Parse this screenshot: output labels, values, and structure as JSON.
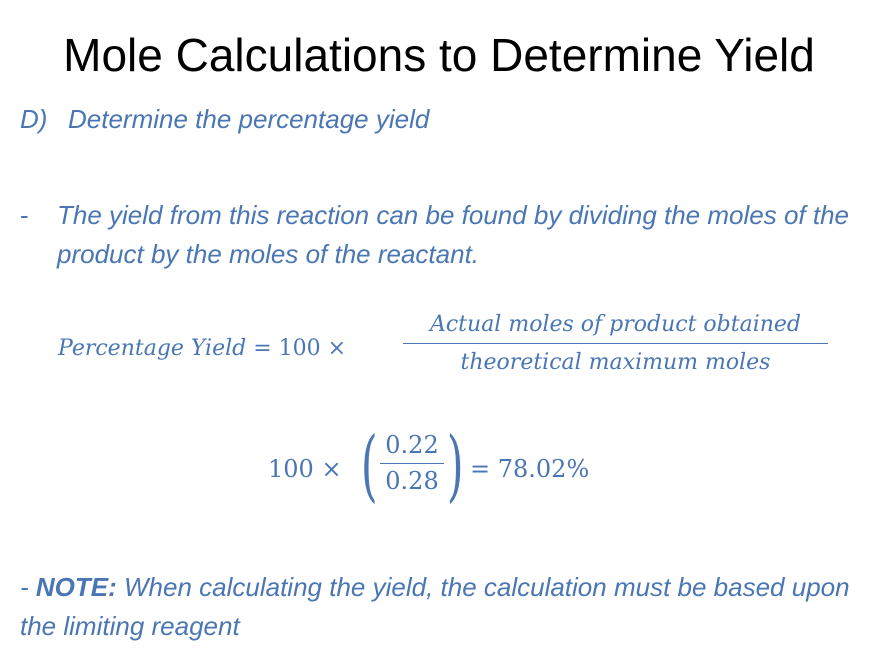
{
  "slide": {
    "title": "Mole Calculations to Determine Yield",
    "heading": {
      "label": "D)",
      "text": "Determine the percentage yield"
    },
    "bullet": {
      "marker": "-",
      "text": "The yield from this reaction can be found by dividing the moles of the product by the moles of the reactant."
    },
    "formula": {
      "lhs_name": "Percentage Yield",
      "lhs_rest": "= 100 ×",
      "numerator": "Actual moles of product obtained",
      "denominator": "theoretical maximum moles"
    },
    "calculation": {
      "multiplier": "100 ×",
      "numerator": "0.22",
      "denominator": "0.28",
      "result": "= 78.02%"
    },
    "note": {
      "prefix": "- ",
      "label": "NOTE:",
      "text": " When calculating the yield, the calculation must be based upon the limiting reagent"
    }
  },
  "colors": {
    "accent": "#4a76b4",
    "title": "#000000",
    "background": "#ffffff"
  }
}
